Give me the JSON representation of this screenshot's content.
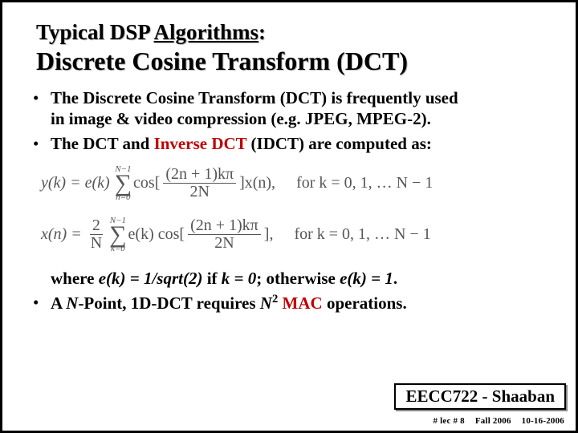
{
  "title_lead": "Typical DSP ",
  "title_word": "Algorithms",
  "title_colon": ":",
  "subtitle": "Discrete Cosine Transform (DCT)",
  "bullets": {
    "b1a": "The Discrete Cosine Transform (DCT) is frequently used ",
    "b1b": "in image & video compression (e.g.  JPEG, MPEG-2).",
    "b2a": "The DCT and ",
    "b2red": "Inverse DCT",
    "b2b": " (IDCT) are computed as:",
    "b3a1": "where ",
    "b3a2": "e(k) = 1/sqrt(2)",
    "b3a3": " if ",
    "b3a4": "k = 0",
    "b3a5": "; otherwise ",
    "b3a6": "e(k) = 1",
    "b3a7": ".",
    "b4a": "A ",
    "b4i1": "N",
    "b4b": "-Point, 1D-DCT requires ",
    "b4i2": "N",
    "b4sup": "2",
    "b4c": " ",
    "b4red": "MAC",
    "b4d": " operations."
  },
  "eq1": {
    "lhs": "y(k) = e(k)",
    "sum_upper": "N−1",
    "sum_lower": "n=0",
    "cos": "cos[",
    "frac_num": "(2n + 1)kπ",
    "frac_den": "2N",
    "after": "]x(n),",
    "cond": "for  k = 0, 1, … N − 1"
  },
  "eq2": {
    "lhs": "x(n) = ",
    "frac0_num": "2",
    "frac0_den": "N",
    "sum_upper": "N−1",
    "sum_lower": "k=0",
    "mid": "e(k) cos[",
    "frac_num": "(2n + 1)kπ",
    "frac_den": "2N",
    "after": "],",
    "cond": "for  k = 0, 1, … N − 1"
  },
  "footer": "EECC722 - Shaaban",
  "subfooter": {
    "a": "#  lec # 8",
    "b": "Fall 2006",
    "c": "10-16-2006"
  }
}
